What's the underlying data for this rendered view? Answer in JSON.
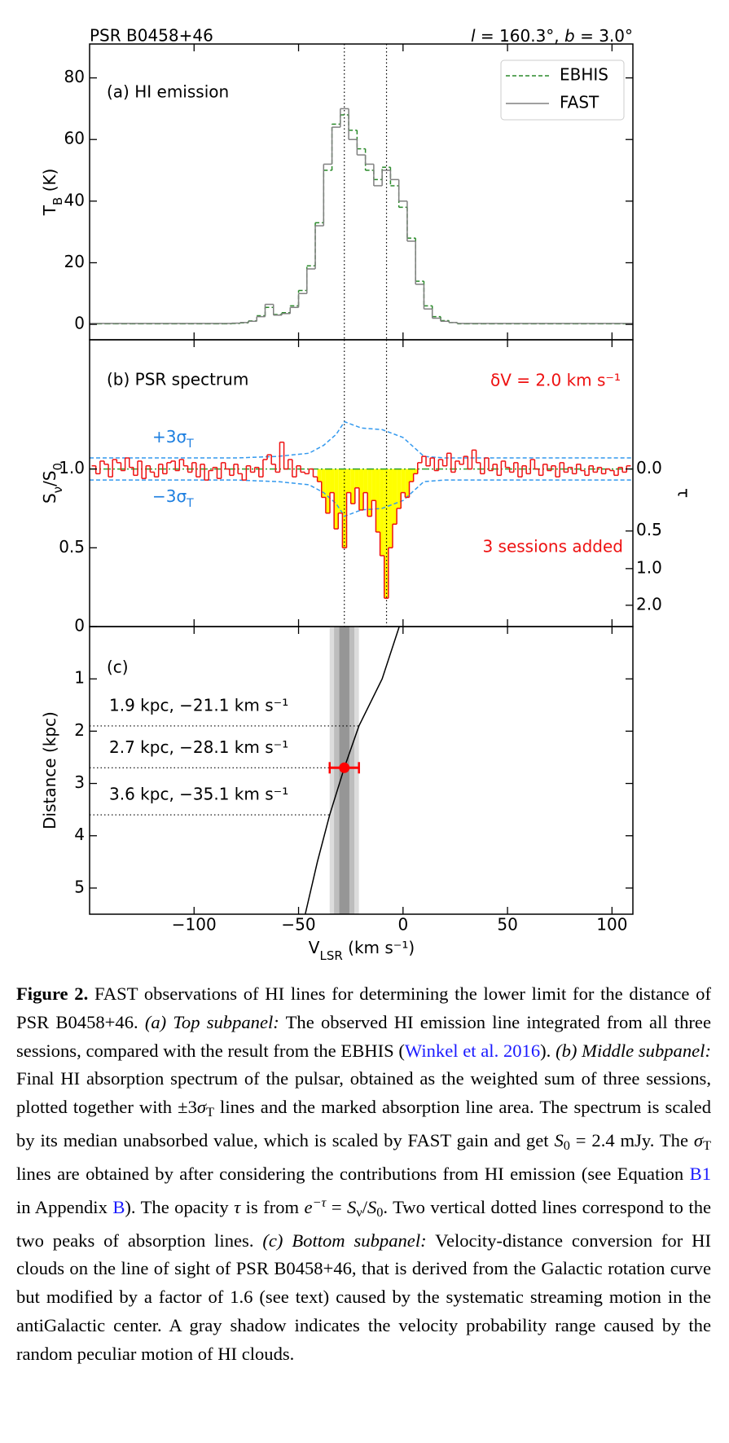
{
  "header": {
    "left": "PSR B0458+46",
    "right": [
      "l",
      " = 160.3°, ",
      "b",
      " = 3.0°"
    ]
  },
  "chart_data": [
    {
      "type": "step",
      "title": "(a) HI emission",
      "ylabel": [
        "T",
        "B",
        " (K)"
      ],
      "xlim": [
        -150,
        110
      ],
      "ylim": [
        -5,
        91
      ],
      "yticks": [
        0,
        20,
        40,
        60,
        80
      ],
      "legend": "upper right",
      "x": [
        -148,
        -144,
        -140,
        -136,
        -132,
        -128,
        -124,
        -120,
        -116,
        -112,
        -108,
        -104,
        -100,
        -96,
        -92,
        -88,
        -84,
        -80,
        -76,
        -72,
        -68,
        -64,
        -60,
        -56,
        -52,
        -48,
        -44,
        -40,
        -36,
        -32,
        -28,
        -24,
        -20,
        -16,
        -12,
        -8,
        -4,
        0,
        4,
        8,
        12,
        16,
        20,
        24,
        28,
        32,
        36,
        40,
        44,
        48,
        52,
        56,
        60,
        64,
        68,
        72,
        76,
        80,
        84,
        88,
        92,
        96,
        100,
        104,
        108
      ],
      "series": [
        {
          "name": "EBHIS",
          "color": "#2a8a2a",
          "linestyle": "dashed",
          "drawstyle": "steps-mid",
          "values": [
            0.2,
            0.2,
            0.2,
            0.2,
            0.2,
            0.2,
            0.2,
            0.2,
            0.2,
            0.2,
            0.2,
            0.2,
            0.2,
            0.2,
            0.2,
            0.2,
            0.2,
            0.3,
            0.5,
            1.1,
            2.8,
            5.5,
            3.2,
            3.8,
            6,
            11,
            19,
            33,
            50,
            65,
            68,
            63,
            57,
            50,
            47,
            51,
            45,
            38,
            28,
            14,
            6,
            2.5,
            1.2,
            0.6,
            0.2,
            0.2,
            0.2,
            0.2,
            0.2,
            0.2,
            0.2,
            0.2,
            0.2,
            0.2,
            0.2,
            0.2,
            0.2,
            0.2,
            0.2,
            0.2,
            0.2,
            0.2,
            0.2,
            0.2,
            0.2
          ]
        },
        {
          "name": "FAST",
          "color": "#808080",
          "linestyle": "solid",
          "drawstyle": "steps-mid",
          "values": [
            0.3,
            0.3,
            0.3,
            0.3,
            0.3,
            0.3,
            0.3,
            0.3,
            0.3,
            0.3,
            0.3,
            0.3,
            0.3,
            0.3,
            0.3,
            0.3,
            0.3,
            0.4,
            0.6,
            1.0,
            2.5,
            6.5,
            3.0,
            3.5,
            5.5,
            10,
            18,
            32,
            52,
            64,
            70,
            60,
            55,
            52,
            45,
            50,
            47,
            40,
            27,
            13,
            5,
            2,
            1,
            0.6,
            0.3,
            0.3,
            0.3,
            0.3,
            0.3,
            0.3,
            0.3,
            0.3,
            0.3,
            0.3,
            0.3,
            0.3,
            0.3,
            0.3,
            0.3,
            0.3,
            0.3,
            0.3,
            0.3,
            0.3,
            0.3
          ]
        }
      ]
    },
    {
      "type": "step",
      "title": "(b) PSR spectrum",
      "ylabel": [
        "S",
        "ν",
        "/S",
        "0"
      ],
      "y2label": "τ",
      "xlim": [
        -150,
        110
      ],
      "ylim": [
        0,
        1.82
      ],
      "yticks": [
        0,
        0.5,
        {
          "value": 1.0,
          "label": "1.0"
        }
      ],
      "y2ticks": [
        {
          "value": 0,
          "label": "0.0"
        },
        0.5,
        {
          "value": 1,
          "label": "1.0"
        },
        {
          "value": 2,
          "label": "2.0"
        }
      ],
      "annotations": [
        [
          "+3σ",
          "T"
        ],
        [
          "−3σ",
          "T"
        ],
        "δV = 2.0 km s⁻¹",
        "3 sessions added"
      ],
      "vlines": [
        -28.1,
        -7.9
      ],
      "hline": {
        "value": 1.0,
        "color": "#2ca02c",
        "linestyle": "dashdot"
      },
      "fill": {
        "color": "#ffff00",
        "range": [
          -41,
          7
        ]
      },
      "x": [
        -148,
        -146,
        -144,
        -142,
        -140,
        -138,
        -136,
        -134,
        -132,
        -130,
        -128,
        -126,
        -124,
        -122,
        -120,
        -118,
        -116,
        -114,
        -112,
        -110,
        -108,
        -106,
        -104,
        -102,
        -100,
        -98,
        -96,
        -94,
        -92,
        -90,
        -88,
        -86,
        -84,
        -82,
        -80,
        -78,
        -76,
        -74,
        -72,
        -70,
        -68,
        -66,
        -64,
        -62,
        -60,
        -58,
        -56,
        -54,
        -52,
        -50,
        -48,
        -46,
        -44,
        -42,
        -40,
        -38,
        -36,
        -34,
        -32,
        -30,
        -28,
        -26,
        -24,
        -22,
        -20,
        -18,
        -16,
        -14,
        -12,
        -10,
        -8,
        -6,
        -4,
        -2,
        0,
        2,
        4,
        6,
        8,
        10,
        12,
        14,
        16,
        18,
        20,
        22,
        24,
        26,
        28,
        30,
        32,
        34,
        36,
        38,
        40,
        42,
        44,
        46,
        48,
        50,
        52,
        54,
        56,
        58,
        60,
        62,
        64,
        66,
        68,
        70,
        72,
        74,
        76,
        78,
        80,
        82,
        84,
        86,
        88,
        90,
        92,
        94,
        96,
        98,
        100,
        102,
        104,
        106,
        108
      ],
      "series": [
        {
          "color": "#3399ee",
          "linestyle": "dashed",
          "drawstyle": "line",
          "x": [
            -150,
            -80,
            -60,
            -45,
            -38,
            -32,
            -28,
            -20,
            -10,
            0,
            10,
            20,
            110
          ],
          "values": [
            1.07,
            1.07,
            1.08,
            1.1,
            1.15,
            1.22,
            1.3,
            1.26,
            1.25,
            1.2,
            1.08,
            1.07,
            1.07
          ]
        },
        {
          "color": "#3399ee",
          "linestyle": "dashed",
          "drawstyle": "line",
          "x": [
            -150,
            -80,
            -60,
            -45,
            -38,
            -32,
            -28,
            -20,
            -10,
            0,
            10,
            20,
            110
          ],
          "values": [
            0.93,
            0.93,
            0.92,
            0.9,
            0.85,
            0.78,
            0.7,
            0.74,
            0.75,
            0.8,
            0.92,
            0.93,
            0.93
          ]
        },
        {
          "color": "#ee1111",
          "linestyle": "solid",
          "drawstyle": "steps-mid",
          "values": [
            1.02,
            0.97,
            1.05,
            1.03,
            0.95,
            1.06,
            1.04,
            0.99,
            1.07,
            1.01,
            0.96,
            1.05,
            0.94,
            1.02,
            0.98,
            0.95,
            1.03,
            0.97,
            1.04,
            1.05,
            0.99,
            1.06,
            1.02,
            0.98,
            1.04,
            0.95,
            1.03,
            0.93,
            0.99,
            1.01,
            0.94,
            1.04,
            1.0,
            0.96,
            1.03,
            0.97,
            0.93,
            1.02,
            0.98,
            1.01,
            0.95,
            1.06,
            1.09,
            1.03,
            0.98,
            1.17,
            1.0,
            1.06,
            0.95,
            1.02,
            0.98,
            0.97,
            1.0,
            0.95,
            0.92,
            0.82,
            0.72,
            0.85,
            0.62,
            0.72,
            0.5,
            0.85,
            0.78,
            0.88,
            0.74,
            0.85,
            0.7,
            0.8,
            0.6,
            0.45,
            0.18,
            0.5,
            0.65,
            0.75,
            0.85,
            0.82,
            0.92,
            0.97,
            1.04,
            1.08,
            1.02,
            1.07,
            0.99,
            1.06,
            1.02,
            1.1,
            0.98,
            1.05,
            1.03,
            1.08,
            1.0,
            1.12,
            1.04,
            0.97,
            1.07,
            0.99,
            1.03,
            0.96,
            1.05,
            1.01,
            0.98,
            1.04,
            0.95,
            1.02,
            0.97,
            1.06,
            1.0,
            0.96,
            1.03,
            0.99,
            1.02,
            0.95,
            1.04,
            0.98,
            1.01,
            0.97,
            1.03,
            0.99,
            0.96,
            1.02,
            0.98,
            1.01,
            0.97,
            1.0,
            0.99,
            0.96,
            1.01,
            0.98,
            1.02
          ]
        }
      ]
    },
    {
      "type": "line",
      "title": "(c)",
      "ylabel": [
        "Distance (kpc)"
      ],
      "xlabel": [
        "V",
        "LSR",
        " (km s⁻¹)"
      ],
      "xlim": [
        -150,
        110
      ],
      "ylim": [
        5.5,
        0
      ],
      "yticks": [
        1,
        2,
        3,
        4,
        5
      ],
      "xticks": [
        {
          "value": -100,
          "label": "−100"
        },
        {
          "value": -50,
          "label": "−50"
        },
        0,
        50,
        100
      ],
      "bands": [
        {
          "range": [
            -35.1,
            -21.1
          ],
          "color": "#dcdcdc"
        },
        {
          "range": [
            -33,
            -23.3
          ],
          "color": "#bdbdbd"
        },
        {
          "range": [
            -30.5,
            -25.7
          ],
          "color": "#969696"
        }
      ],
      "hlines": [
        {
          "value": 1.9,
          "xend": -21.1,
          "label": "1.9 kpc, −21.1 km s⁻¹"
        },
        {
          "value": 2.7,
          "xend": -28.1,
          "label": "2.7 kpc, −28.1 km s⁻¹"
        },
        {
          "value": 3.6,
          "xend": -35.1,
          "label": "3.6 kpc, −35.1 km s⁻¹"
        }
      ],
      "series": [
        {
          "color": "#000000",
          "linestyle": "solid",
          "drawstyle": "line",
          "x": [
            -1.8,
            -10,
            -21.1,
            -28.1,
            -35.1,
            -41,
            -46.8
          ],
          "values": [
            0,
            1,
            1.9,
            2.7,
            3.6,
            4.5,
            5.5
          ]
        }
      ],
      "point": {
        "x": -28.1,
        "value": 2.7,
        "xerr": 7.0,
        "color": "#ff0000"
      }
    }
  ],
  "caption": {
    "label": "Figure 2.",
    "segments": [
      {
        "text": " FAST observations of HI lines for determining the lower limit for the distance of PSR B0458+46. ",
        "style": "normal"
      },
      {
        "text": "(a) Top subpanel:",
        "style": "italic"
      },
      {
        "text": " The observed HI emission line integrated from all three sessions, compared with the result from the EBHIS (",
        "style": "normal"
      },
      {
        "text": "Winkel et al. 2016",
        "style": "link"
      },
      {
        "text": "). ",
        "style": "normal"
      },
      {
        "text": "(b) Middle subpanel:",
        "style": "italic"
      },
      {
        "text": " Final HI absorption spectrum of the pulsar, obtained as the weighted sum of three sessions, plotted together with ±3",
        "style": "normal"
      },
      {
        "text": "σ",
        "style": "italic"
      },
      {
        "text": "T",
        "style": "sub"
      },
      {
        "text": " lines and the marked absorption line area. The spectrum is scaled by its median unabsorbed value, which is scaled by FAST gain and get ",
        "style": "normal"
      },
      {
        "text": "S",
        "style": "italic"
      },
      {
        "text": "0",
        "style": "sub"
      },
      {
        "text": " = 2.4 mJy. The ",
        "style": "normal"
      },
      {
        "text": "σ",
        "style": "italic"
      },
      {
        "text": "T",
        "style": "sub"
      },
      {
        "text": " lines are obtained by after considering the contributions from HI emission (see Equation ",
        "style": "normal"
      },
      {
        "text": "B1",
        "style": "link"
      },
      {
        "text": " in Appendix ",
        "style": "normal"
      },
      {
        "text": "B",
        "style": "link"
      },
      {
        "text": "). The opacity ",
        "style": "normal"
      },
      {
        "text": "τ",
        "style": "italic"
      },
      {
        "text": " is from ",
        "style": "normal"
      },
      {
        "text": "e",
        "style": "italic"
      },
      {
        "text": "−τ",
        "style": "sup"
      },
      {
        "text": " = ",
        "style": "normal"
      },
      {
        "text": "S",
        "style": "italic"
      },
      {
        "text": "ν",
        "style": "sub"
      },
      {
        "text": "/",
        "style": "normal"
      },
      {
        "text": "S",
        "style": "italic"
      },
      {
        "text": "0",
        "style": "sub"
      },
      {
        "text": ". Two vertical dotted lines correspond to the two peaks of absorption lines. ",
        "style": "normal"
      },
      {
        "text": "(c) Bottom subpanel:",
        "style": "italic"
      },
      {
        "text": " Velocity-distance conversion for HI clouds on the line of sight of PSR B0458+46, that is derived from the Galactic rotation curve but modified by a factor of 1.6 (see text) caused by the systematic streaming motion in the antiGalactic center. A gray shadow indicates the velocity probability range caused by the random peculiar motion of HI clouds.",
        "style": "normal"
      }
    ]
  }
}
